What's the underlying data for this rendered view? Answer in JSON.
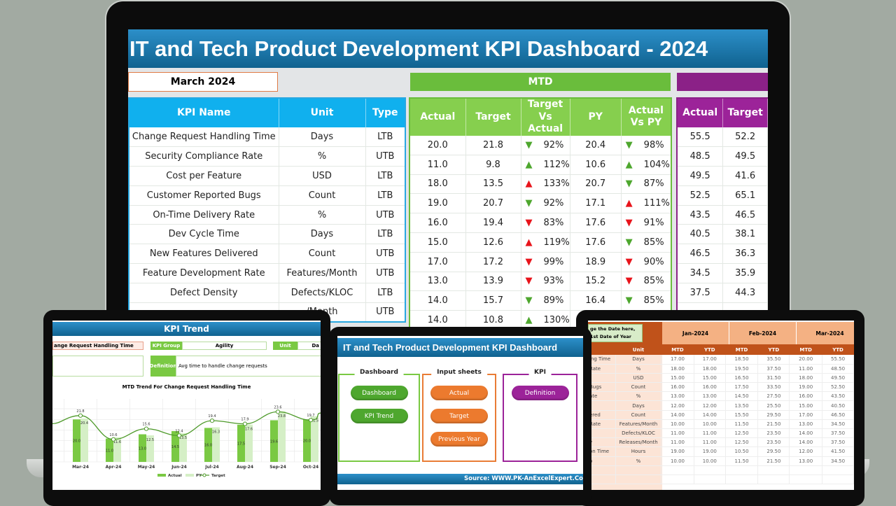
{
  "main": {
    "title": "IT and Tech Product Development KPI Dashboard - 2024",
    "month": "March 2024",
    "mtd_label": "MTD",
    "headers": {
      "kpi": "KPI Name",
      "unit": "Unit",
      "type": "Type",
      "actual": "Actual",
      "target": "Target",
      "tva": "Target Vs Actual",
      "py": "PY",
      "avp": "Actual Vs PY",
      "ytd_actual": "Actual",
      "ytd_target": "Target"
    },
    "colors": {
      "good": "#4ea72e",
      "bad": "#e8141b",
      "blue": "#10b0ee",
      "green": "#86cf4e",
      "purple": "#9c2399"
    },
    "rows": [
      {
        "kpi": "Change Request Handling Time",
        "unit": "Days",
        "type": "LTB",
        "actual": "20.0",
        "target": "21.8",
        "tva_dir": "down",
        "tva_good": true,
        "tva": "92%",
        "py": "20.4",
        "avp_dir": "down",
        "avp_good": true,
        "avp": "98%",
        "ytd_actual": "55.5",
        "ytd_target": "52.2"
      },
      {
        "kpi": "Security Compliance Rate",
        "unit": "%",
        "type": "UTB",
        "actual": "11.0",
        "target": "9.8",
        "tva_dir": "up",
        "tva_good": true,
        "tva": "112%",
        "py": "10.6",
        "avp_dir": "up",
        "avp_good": true,
        "avp": "104%",
        "ytd_actual": "48.5",
        "ytd_target": "49.5"
      },
      {
        "kpi": "Cost per Feature",
        "unit": "USD",
        "type": "LTB",
        "actual": "18.0",
        "target": "13.5",
        "tva_dir": "up",
        "tva_good": false,
        "tva": "133%",
        "py": "20.7",
        "avp_dir": "down",
        "avp_good": true,
        "avp": "87%",
        "ytd_actual": "49.5",
        "ytd_target": "41.6"
      },
      {
        "kpi": "Customer Reported Bugs",
        "unit": "Count",
        "type": "LTB",
        "actual": "19.0",
        "target": "20.7",
        "tva_dir": "down",
        "tva_good": true,
        "tva": "92%",
        "py": "17.1",
        "avp_dir": "up",
        "avp_good": false,
        "avp": "111%",
        "ytd_actual": "52.5",
        "ytd_target": "65.1"
      },
      {
        "kpi": "On-Time Delivery Rate",
        "unit": "%",
        "type": "UTB",
        "actual": "16.0",
        "target": "19.4",
        "tva_dir": "down",
        "tva_good": false,
        "tva": "83%",
        "py": "17.6",
        "avp_dir": "down",
        "avp_good": false,
        "avp": "91%",
        "ytd_actual": "43.5",
        "ytd_target": "46.5"
      },
      {
        "kpi": "Dev Cycle Time",
        "unit": "Days",
        "type": "LTB",
        "actual": "15.0",
        "target": "12.6",
        "tva_dir": "up",
        "tva_good": false,
        "tva": "119%",
        "py": "17.6",
        "avp_dir": "down",
        "avp_good": true,
        "avp": "85%",
        "ytd_actual": "40.5",
        "ytd_target": "38.1"
      },
      {
        "kpi": "New Features Delivered",
        "unit": "Count",
        "type": "UTB",
        "actual": "17.0",
        "target": "17.2",
        "tva_dir": "down",
        "tva_good": false,
        "tva": "99%",
        "py": "18.9",
        "avp_dir": "down",
        "avp_good": false,
        "avp": "90%",
        "ytd_actual": "46.5",
        "ytd_target": "36.3"
      },
      {
        "kpi": "Feature Development Rate",
        "unit": "Features/Month",
        "type": "UTB",
        "actual": "13.0",
        "target": "13.9",
        "tva_dir": "down",
        "tva_good": false,
        "tva": "93%",
        "py": "15.2",
        "avp_dir": "down",
        "avp_good": false,
        "avp": "85%",
        "ytd_actual": "34.5",
        "ytd_target": "35.9"
      },
      {
        "kpi": "Defect Density",
        "unit": "Defects/KLOC",
        "type": "LTB",
        "actual": "14.0",
        "target": "15.7",
        "tva_dir": "down",
        "tva_good": true,
        "tva": "89%",
        "py": "16.4",
        "avp_dir": "down",
        "avp_good": true,
        "avp": "85%",
        "ytd_actual": "37.5",
        "ytd_target": "44.3"
      },
      {
        "kpi": "",
        "unit": "/Month",
        "type": "UTB",
        "actual": "14.0",
        "target": "10.8",
        "tva_dir": "up",
        "tva_good": true,
        "tva": "130%",
        "py": "",
        "avp_dir": "",
        "avp_good": true,
        "avp": "",
        "ytd_actual": "",
        "ytd_target": ""
      }
    ]
  },
  "trend": {
    "title": "KPI Trend",
    "kpi_name": "ange Request Handling Time",
    "kpi_group_label": "KPI Group",
    "kpi_group": "Agility",
    "unit_label": "Unit",
    "unit": "Da",
    "definition_label": "Definition",
    "definition": "Avg time to handle change requests"
  },
  "chart_data": {
    "type": "bar",
    "title": "MTD Trend For Change Request Handling Time",
    "categories": [
      "Mar-24",
      "Apr-24",
      "May-24",
      "Jun-24",
      "Jul-24",
      "Aug-24",
      "Sep-24",
      "Oct-24"
    ],
    "series": [
      {
        "name": "Actual",
        "type": "bar",
        "color": "#7ac943",
        "values": [
          20.0,
          11.0,
          13.0,
          14.5,
          16.0,
          17.5,
          19.6,
          20.0
        ]
      },
      {
        "name": "PY",
        "type": "bar",
        "color": "#d5efc6",
        "values": [
          20.4,
          11.6,
          12.5,
          13.5,
          16.3,
          17.6,
          23.8,
          21.5
        ]
      },
      {
        "name": "Target",
        "type": "line",
        "color": "#4e9a2a",
        "values": [
          21.8,
          10.6,
          15.6,
          12.4,
          19.4,
          17.9,
          23.6,
          19.7
        ]
      }
    ],
    "ylim": [
      0,
      28
    ],
    "grid": true,
    "legend": "bottom"
  },
  "home": {
    "title": "IT and Tech Product Development KPI Dashboard",
    "groups": [
      {
        "label": "Dashboard",
        "color": "#7ac943",
        "buttons": [
          "Dashboard",
          "KPI Trend"
        ],
        "btn_color": "#4ea72e"
      },
      {
        "label": "Input sheets",
        "color": "#e97c35",
        "buttons": [
          "Actual",
          "Target",
          "Previous Year"
        ],
        "btn_color": "#ec7a2e"
      },
      {
        "label": "KPI",
        "color": "#9c2399",
        "buttons": [
          "Definition"
        ],
        "btn_color": "#9c2399"
      }
    ],
    "source": "Source: WWW.PK-AnExcelExpert.Co"
  },
  "actual_sheet": {
    "callout": "ge the Date here,\n1st Date of Year",
    "unit_header": "Unit",
    "months": [
      "Jan-2024",
      "Feb-2024",
      "Mar-2024"
    ],
    "sub": [
      "MTD",
      "YTD",
      "MTD",
      "YTD",
      "MTD",
      "YTD"
    ],
    "rows": [
      [
        "ing Time",
        "Days",
        "17.00",
        "17.00",
        "18.50",
        "35.50",
        "20.00",
        "55.50"
      ],
      [
        "Rate",
        "%",
        "18.00",
        "18.00",
        "19.50",
        "37.50",
        "11.00",
        "48.50"
      ],
      [
        "",
        "USD",
        "15.00",
        "15.00",
        "16.50",
        "31.50",
        "18.00",
        "49.50"
      ],
      [
        "Bugs",
        "Count",
        "16.00",
        "16.00",
        "17.50",
        "33.50",
        "19.00",
        "52.50"
      ],
      [
        "ate",
        "%",
        "13.00",
        "13.00",
        "14.50",
        "27.50",
        "16.00",
        "43.50"
      ],
      [
        "",
        "Days",
        "12.00",
        "12.00",
        "13.50",
        "25.50",
        "15.00",
        "40.50"
      ],
      [
        "ered",
        "Count",
        "14.00",
        "14.00",
        "15.50",
        "29.50",
        "17.00",
        "46.50"
      ],
      [
        "Rate",
        "Features/Month",
        "10.00",
        "10.00",
        "11.50",
        "21.50",
        "13.00",
        "34.50"
      ],
      [
        "",
        "Defects/KLOC",
        "11.00",
        "11.00",
        "12.50",
        "23.50",
        "14.00",
        "37.50"
      ],
      [
        "y",
        "Releases/Month",
        "11.00",
        "11.00",
        "12.50",
        "23.50",
        "14.00",
        "37.50"
      ],
      [
        "on Time",
        "Hours",
        "19.00",
        "19.00",
        "10.50",
        "29.50",
        "12.00",
        "41.50"
      ],
      [
        "o",
        "%",
        "10.00",
        "10.00",
        "11.50",
        "21.50",
        "13.00",
        "34.50"
      ]
    ]
  }
}
